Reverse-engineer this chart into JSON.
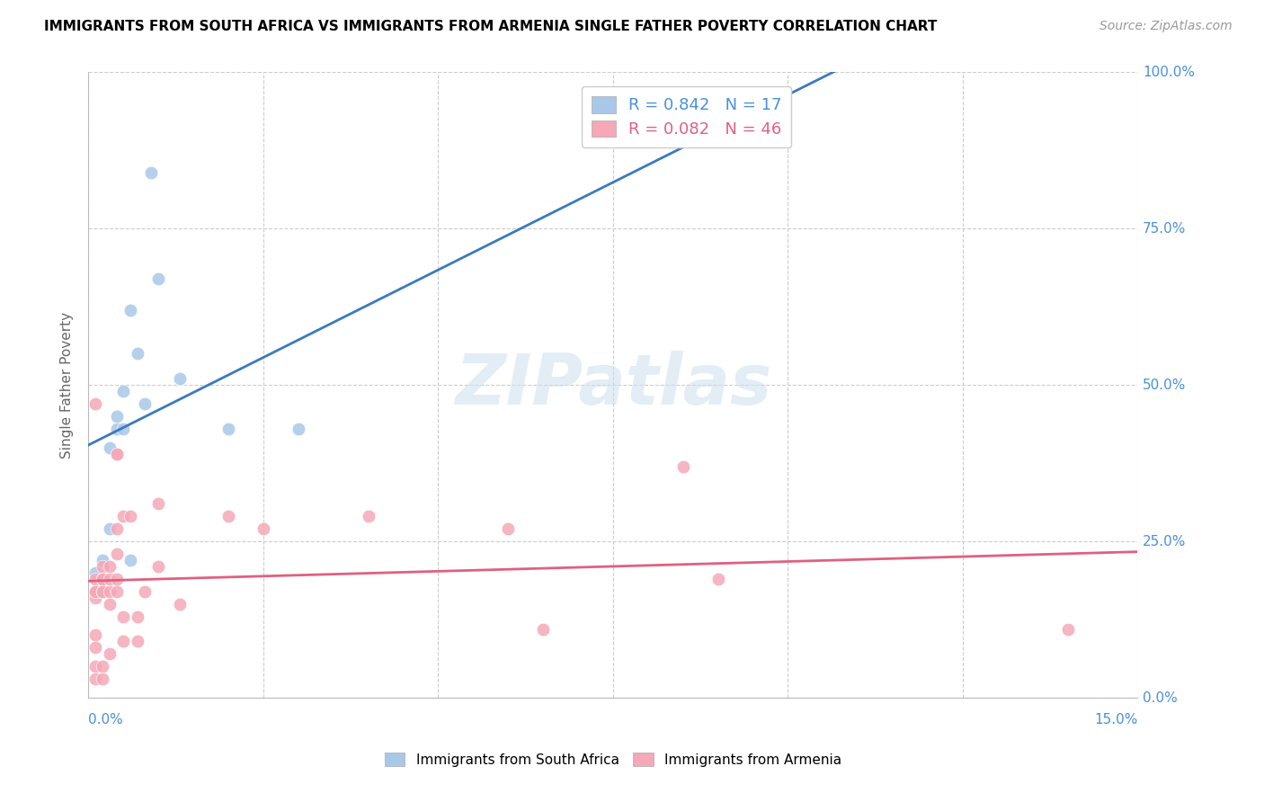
{
  "title": "IMMIGRANTS FROM SOUTH AFRICA VS IMMIGRANTS FROM ARMENIA SINGLE FATHER POVERTY CORRELATION CHART",
  "source": "Source: ZipAtlas.com",
  "ylabel": "Single Father Poverty",
  "r_south_africa": 0.842,
  "n_south_africa": 17,
  "r_armenia": 0.082,
  "n_armenia": 46,
  "color_south_africa": "#a8c8e8",
  "color_armenia": "#f4a8b8",
  "color_south_africa_line": "#3a7abf",
  "color_armenia_line": "#e06080",
  "color_axis_labels": "#4a90d9",
  "watermark": "ZIPatlas",
  "south_africa_points": [
    [
      0.001,
      0.2
    ],
    [
      0.002,
      0.22
    ],
    [
      0.003,
      0.27
    ],
    [
      0.003,
      0.4
    ],
    [
      0.004,
      0.43
    ],
    [
      0.004,
      0.45
    ],
    [
      0.005,
      0.43
    ],
    [
      0.005,
      0.49
    ],
    [
      0.006,
      0.62
    ],
    [
      0.006,
      0.22
    ],
    [
      0.007,
      0.55
    ],
    [
      0.008,
      0.47
    ],
    [
      0.009,
      0.84
    ],
    [
      0.01,
      0.67
    ],
    [
      0.013,
      0.51
    ],
    [
      0.02,
      0.43
    ],
    [
      0.03,
      0.43
    ]
  ],
  "armenia_points": [
    [
      0.001,
      0.47
    ],
    [
      0.001,
      0.1
    ],
    [
      0.001,
      0.08
    ],
    [
      0.001,
      0.16
    ],
    [
      0.001,
      0.17
    ],
    [
      0.001,
      0.19
    ],
    [
      0.001,
      0.17
    ],
    [
      0.001,
      0.05
    ],
    [
      0.001,
      0.03
    ],
    [
      0.002,
      0.17
    ],
    [
      0.002,
      0.17
    ],
    [
      0.002,
      0.19
    ],
    [
      0.002,
      0.17
    ],
    [
      0.002,
      0.21
    ],
    [
      0.002,
      0.19
    ],
    [
      0.002,
      0.05
    ],
    [
      0.002,
      0.03
    ],
    [
      0.003,
      0.17
    ],
    [
      0.003,
      0.19
    ],
    [
      0.003,
      0.21
    ],
    [
      0.003,
      0.15
    ],
    [
      0.003,
      0.07
    ],
    [
      0.004,
      0.39
    ],
    [
      0.004,
      0.39
    ],
    [
      0.004,
      0.27
    ],
    [
      0.004,
      0.23
    ],
    [
      0.004,
      0.19
    ],
    [
      0.004,
      0.17
    ],
    [
      0.005,
      0.29
    ],
    [
      0.005,
      0.13
    ],
    [
      0.005,
      0.09
    ],
    [
      0.006,
      0.29
    ],
    [
      0.007,
      0.13
    ],
    [
      0.007,
      0.09
    ],
    [
      0.008,
      0.17
    ],
    [
      0.01,
      0.31
    ],
    [
      0.01,
      0.21
    ],
    [
      0.013,
      0.15
    ],
    [
      0.02,
      0.29
    ],
    [
      0.025,
      0.27
    ],
    [
      0.04,
      0.29
    ],
    [
      0.06,
      0.27
    ],
    [
      0.065,
      0.11
    ],
    [
      0.085,
      0.37
    ],
    [
      0.09,
      0.19
    ],
    [
      0.14,
      0.11
    ]
  ],
  "xlim": [
    0.0,
    0.15
  ],
  "ylim": [
    0.0,
    1.0
  ],
  "yticks": [
    0.0,
    0.25,
    0.5,
    0.75,
    1.0
  ],
  "ytick_labels": [
    "0.0%",
    "25.0%",
    "50.0%",
    "75.0%",
    "100.0%"
  ],
  "xticks": [
    0.0,
    0.025,
    0.05,
    0.075,
    0.1,
    0.125,
    0.15
  ],
  "legend_label_sa": "Immigrants from South Africa",
  "legend_label_ar": "Immigrants from Armenia"
}
